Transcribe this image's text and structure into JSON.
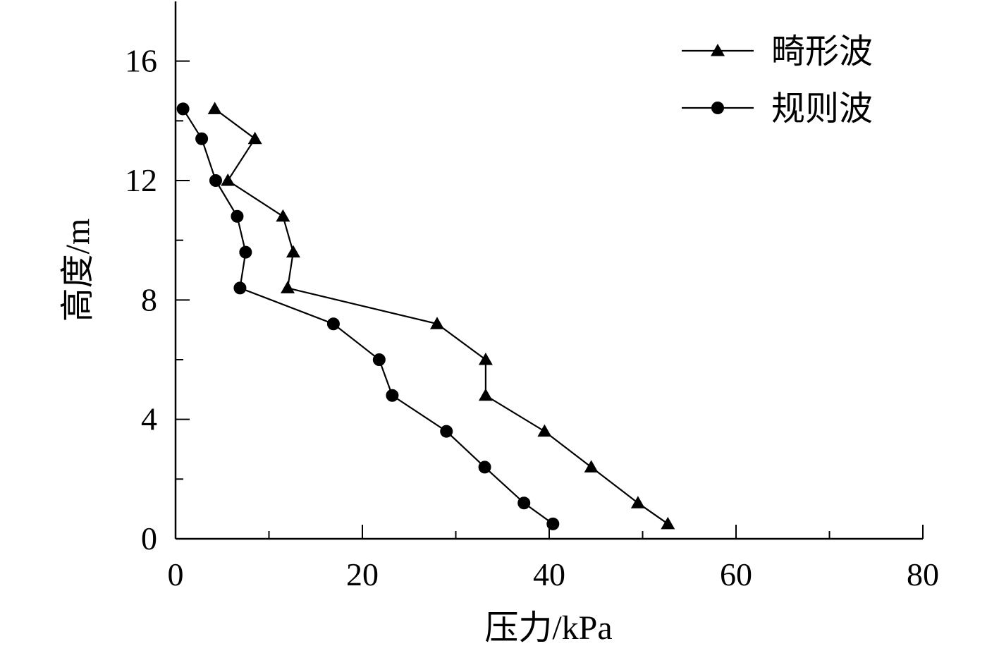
{
  "chart_data": {
    "type": "line",
    "xlabel": "压力/kPa",
    "ylabel": "高度/m",
    "xlim": [
      0,
      80
    ],
    "ylim": [
      0,
      18
    ],
    "xticks": [
      0,
      20,
      40,
      60,
      80
    ],
    "yticks": [
      0,
      4,
      8,
      12,
      16
    ],
    "grid": false,
    "legend_position": "top-right",
    "series": [
      {
        "name": "畸形波",
        "marker": "triangle",
        "points": [
          {
            "x": 4.2,
            "y": 14.4
          },
          {
            "x": 8.5,
            "y": 13.4
          },
          {
            "x": 5.6,
            "y": 12.0
          },
          {
            "x": 11.5,
            "y": 10.8
          },
          {
            "x": 12.6,
            "y": 9.6
          },
          {
            "x": 12.0,
            "y": 8.4
          },
          {
            "x": 28.0,
            "y": 7.2
          },
          {
            "x": 33.2,
            "y": 6.0
          },
          {
            "x": 33.2,
            "y": 4.8
          },
          {
            "x": 39.5,
            "y": 3.6
          },
          {
            "x": 44.5,
            "y": 2.4
          },
          {
            "x": 49.5,
            "y": 1.2
          },
          {
            "x": 52.7,
            "y": 0.5
          }
        ]
      },
      {
        "name": "规则波",
        "marker": "circle",
        "points": [
          {
            "x": 0.8,
            "y": 14.4
          },
          {
            "x": 2.8,
            "y": 13.4
          },
          {
            "x": 4.3,
            "y": 12.0
          },
          {
            "x": 6.6,
            "y": 10.8
          },
          {
            "x": 7.5,
            "y": 9.6
          },
          {
            "x": 6.9,
            "y": 8.4
          },
          {
            "x": 16.9,
            "y": 7.2
          },
          {
            "x": 21.8,
            "y": 6.0
          },
          {
            "x": 23.2,
            "y": 4.8
          },
          {
            "x": 29.0,
            "y": 3.6
          },
          {
            "x": 33.1,
            "y": 2.4
          },
          {
            "x": 37.3,
            "y": 1.2
          },
          {
            "x": 40.4,
            "y": 0.5
          }
        ]
      }
    ]
  }
}
